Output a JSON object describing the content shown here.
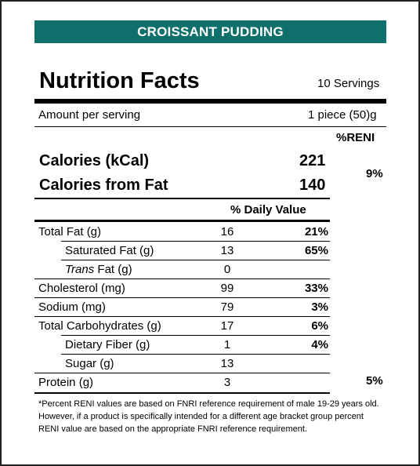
{
  "banner": {
    "title": "CROISSANT PUDDING"
  },
  "header": {
    "title": "Nutrition Facts",
    "servings": "10 Servings"
  },
  "amount": {
    "label": "Amount per serving",
    "value": "1 piece (50)g"
  },
  "reni_header": "%RENI",
  "calories": {
    "label": "Calories (kCal)",
    "value": "221",
    "fat_label": "Calories from Fat",
    "fat_value": "140",
    "reni": "9%"
  },
  "daily_value_header": "% Daily Value",
  "nutrients": [
    {
      "name": "Total Fat (g)",
      "qty": "16",
      "pct": "21%"
    },
    {
      "name": "Saturated Fat (g)",
      "qty": "13",
      "pct": "65%"
    },
    {
      "name_italic": "Trans",
      "name_rest": " Fat (g)",
      "qty": "0",
      "pct": ""
    },
    {
      "name": "Cholesterol (mg)",
      "qty": "99",
      "pct": "33%"
    },
    {
      "name": "Sodium (mg)",
      "qty": "79",
      "pct": "3%"
    },
    {
      "name": "Total Carbohydrates (g)",
      "qty": "17",
      "pct": "6%"
    },
    {
      "name": "Dietary Fiber (g)",
      "qty": "1",
      "pct": "4%"
    },
    {
      "name": "Sugar (g)",
      "qty": "13",
      "pct": ""
    },
    {
      "name": "Protein (g)",
      "qty": "3",
      "pct": "",
      "reni": "5%"
    }
  ],
  "footnote": "*Percent RENI values are based on FNRI reference requirement of male 19-29 years old. However, if a product is specifically intended for a different age bracket group percent RENI value are based on the appropriate FNRI reference requirement."
}
